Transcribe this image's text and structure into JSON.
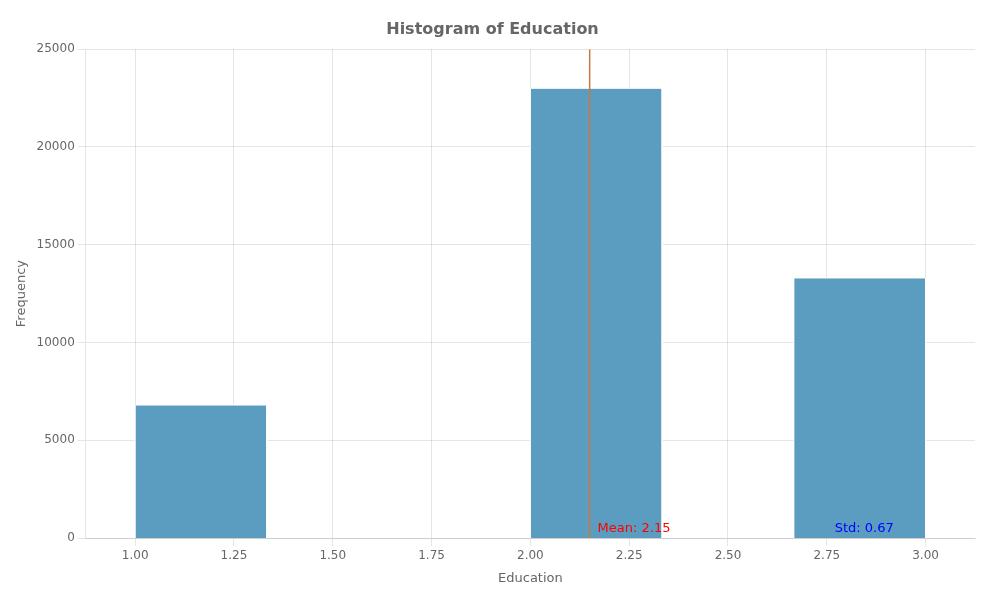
{
  "chart_data": {
    "type": "histogram",
    "title": "Histogram of Education",
    "xlabel": "Education",
    "ylabel": "Frequency",
    "x_start": [
      1.0,
      2.0,
      2.6667
    ],
    "x_end": [
      1.3333,
      2.3333,
      3.0
    ],
    "values": [
      6800,
      23000,
      13300
    ],
    "color": "#5b9dc0",
    "mean_line": {
      "x": 2.15,
      "color": "#c87941"
    },
    "annotations": [
      {
        "text": "Mean: 2.15",
        "x": 2.17,
        "y": 150,
        "color": "red"
      },
      {
        "text": "Std: 0.67",
        "x": 2.77,
        "y": 150,
        "color": "blue"
      }
    ],
    "xlim": [
      0.875,
      3.125
    ],
    "xticks": [
      {
        "value": 1.0,
        "label": "1.00"
      },
      {
        "value": 1.25,
        "label": "1.25"
      },
      {
        "value": 1.5,
        "label": "1.50"
      },
      {
        "value": 1.75,
        "label": "1.75"
      },
      {
        "value": 2.0,
        "label": "2.00"
      },
      {
        "value": 2.25,
        "label": "2.25"
      },
      {
        "value": 2.5,
        "label": "2.50"
      },
      {
        "value": 2.75,
        "label": "2.75"
      },
      {
        "value": 3.0,
        "label": "3.00"
      }
    ],
    "ylim": [
      0,
      25000
    ],
    "yticks": [
      0,
      5000,
      10000,
      15000,
      20000,
      25000
    ],
    "grid": true
  }
}
